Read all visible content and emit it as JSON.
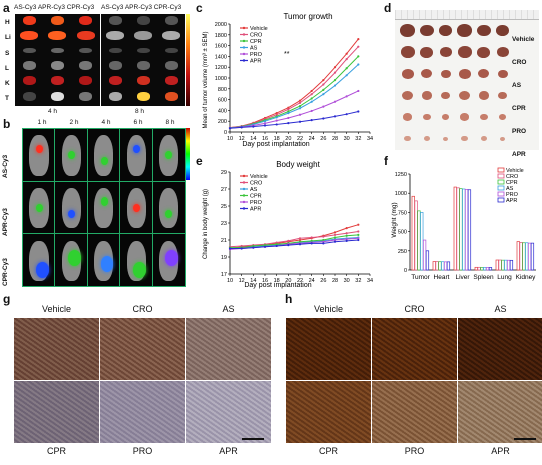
{
  "panel_letters": {
    "a": "a",
    "b": "b",
    "c": "c",
    "d": "d",
    "e": "e",
    "f": "f",
    "g": "g",
    "h": "h"
  },
  "panel_a": {
    "top_labels_left": "AS-Cy3 APR-Cy3 CPR-Cy3",
    "top_labels_right": "AS-Cy3 APR-Cy3 CPR-Cy3",
    "time_left": "4 h",
    "time_right": "8 h",
    "organs": [
      "H",
      "Li",
      "S",
      "L",
      "K",
      "T"
    ]
  },
  "panel_b": {
    "times": [
      "1 h",
      "2 h",
      "4 h",
      "6 h",
      "8 h"
    ],
    "rows": [
      "AS-Cy3",
      "APR-Cy3",
      "CPR-Cy3"
    ]
  },
  "panel_c": {
    "title": "Tumor growth",
    "ylabel": "Mean of tumor volume (mm³ ± SEM)",
    "xlabel": "Day post implantation",
    "xticks": [
      "10",
      "12",
      "14",
      "16",
      "18",
      "20",
      "22",
      "24",
      "26",
      "28",
      "30",
      "32",
      "34"
    ],
    "yticks": [
      "0",
      "200",
      "400",
      "600",
      "800",
      "1000",
      "1200",
      "1400",
      "1600",
      "1800",
      "2000"
    ],
    "sig": "**"
  },
  "panel_d": {
    "groups": [
      "Vehicle",
      "CRO",
      "AS",
      "CPR",
      "PRO",
      "APR"
    ]
  },
  "panel_e": {
    "title": "Body weight",
    "ylabel": "Change in body weight (g)",
    "xlabel": "Day post implantation",
    "xticks": [
      "10",
      "12",
      "14",
      "16",
      "18",
      "20",
      "22",
      "24",
      "26",
      "28",
      "30",
      "32",
      "34"
    ],
    "yticks": [
      "17",
      "19",
      "21",
      "23",
      "25",
      "27",
      "29"
    ]
  },
  "panel_f": {
    "ylabel": "Weight (mg)",
    "categories": [
      "Tumor",
      "Heart",
      "Liver",
      "Spleen",
      "Lung",
      "Kidney"
    ],
    "yticks": [
      "0",
      "250",
      "500",
      "750",
      "1000",
      "1250"
    ]
  },
  "panel_g": {
    "labels_top": [
      "Vehicle",
      "CRO",
      "AS"
    ],
    "labels_bottom": [
      "CPR",
      "PRO",
      "APR"
    ]
  },
  "panel_h": {
    "labels_top": [
      "Vehicle",
      "CRO",
      "AS"
    ],
    "labels_bottom": [
      "CPR",
      "PRO",
      "APR"
    ]
  },
  "series_colors": {
    "Vehicle": "#e23b3b",
    "CRO": "#e0507a",
    "CPR": "#3cc43c",
    "AS": "#3aa0e0",
    "PRO": "#b04fd8",
    "APR": "#2a2ad0"
  },
  "chart_data": [
    {
      "type": "line",
      "title": "Tumor growth",
      "xlabel": "Day post implantation",
      "ylabel": "Mean of tumor volume (mm³ ± SEM)",
      "x": [
        10,
        12,
        14,
        16,
        18,
        20,
        22,
        24,
        26,
        28,
        30,
        32
      ],
      "xlim": [
        10,
        34
      ],
      "ylim": [
        0,
        2000
      ],
      "series": [
        {
          "name": "Vehicle",
          "values": [
            80,
            110,
            170,
            260,
            350,
            450,
            580,
            760,
            960,
            1200,
            1450,
            1720
          ]
        },
        {
          "name": "CRO",
          "values": [
            80,
            105,
            160,
            240,
            320,
            420,
            540,
            700,
            880,
            1100,
            1350,
            1580
          ]
        },
        {
          "name": "CPR",
          "values": [
            75,
            100,
            150,
            220,
            290,
            380,
            480,
            620,
            780,
            960,
            1180,
            1400
          ]
        },
        {
          "name": "AS",
          "values": [
            75,
            95,
            140,
            200,
            270,
            350,
            440,
            560,
            700,
            860,
            1050,
            1250
          ]
        },
        {
          "name": "PRO",
          "values": [
            70,
            90,
            120,
            160,
            210,
            260,
            320,
            390,
            470,
            560,
            660,
            760
          ]
        },
        {
          "name": "APR",
          "values": [
            70,
            85,
            100,
            120,
            140,
            165,
            190,
            220,
            250,
            290,
            330,
            380
          ]
        }
      ]
    },
    {
      "type": "line",
      "title": "Body weight",
      "xlabel": "Day post implantation",
      "ylabel": "Change in body weight (g)",
      "x": [
        10,
        12,
        14,
        16,
        18,
        20,
        22,
        24,
        26,
        28,
        30,
        32
      ],
      "xlim": [
        10,
        34
      ],
      "ylim": [
        17,
        29
      ],
      "series": [
        {
          "name": "Vehicle",
          "values": [
            20.0,
            20.2,
            20.3,
            20.4,
            20.6,
            20.8,
            21.0,
            21.2,
            21.5,
            21.9,
            22.4,
            22.8
          ]
        },
        {
          "name": "CRO",
          "values": [
            20.2,
            20.3,
            20.4,
            20.5,
            20.7,
            20.9,
            21.2,
            21.3,
            21.4,
            21.6,
            21.8,
            22.0
          ]
        },
        {
          "name": "AS",
          "values": [
            20.0,
            20.1,
            20.2,
            20.3,
            20.4,
            20.6,
            20.7,
            20.8,
            20.9,
            21.1,
            21.2,
            21.3
          ]
        },
        {
          "name": "CPR",
          "values": [
            20.1,
            20.1,
            20.3,
            20.4,
            20.5,
            20.6,
            20.8,
            20.9,
            21.0,
            21.3,
            21.5,
            21.6
          ]
        },
        {
          "name": "PRO",
          "values": [
            19.9,
            20.0,
            20.1,
            20.2,
            20.3,
            20.5,
            20.6,
            20.7,
            20.8,
            21.0,
            21.1,
            21.2
          ]
        },
        {
          "name": "APR",
          "values": [
            20.0,
            20.0,
            20.1,
            20.2,
            20.3,
            20.4,
            20.5,
            20.6,
            20.6,
            20.8,
            20.9,
            21.0
          ]
        }
      ]
    },
    {
      "type": "bar",
      "ylabel": "Weight (mg)",
      "categories": [
        "Tumor",
        "Heart",
        "Liver",
        "Spleen",
        "Lung",
        "Kidney"
      ],
      "ylim": [
        0,
        1250
      ],
      "series": [
        {
          "name": "Vehicle",
          "values": [
            960,
            110,
            1080,
            35,
            130,
            370
          ]
        },
        {
          "name": "CRO",
          "values": [
            900,
            110,
            1070,
            35,
            130,
            360
          ]
        },
        {
          "name": "CPR",
          "values": [
            770,
            108,
            1060,
            34,
            128,
            355
          ]
        },
        {
          "name": "AS",
          "values": [
            750,
            108,
            1055,
            34,
            128,
            355
          ]
        },
        {
          "name": "PRO",
          "values": [
            390,
            106,
            1050,
            33,
            127,
            350
          ]
        },
        {
          "name": "APR",
          "values": [
            250,
            106,
            1045,
            33,
            126,
            350
          ]
        }
      ]
    }
  ]
}
